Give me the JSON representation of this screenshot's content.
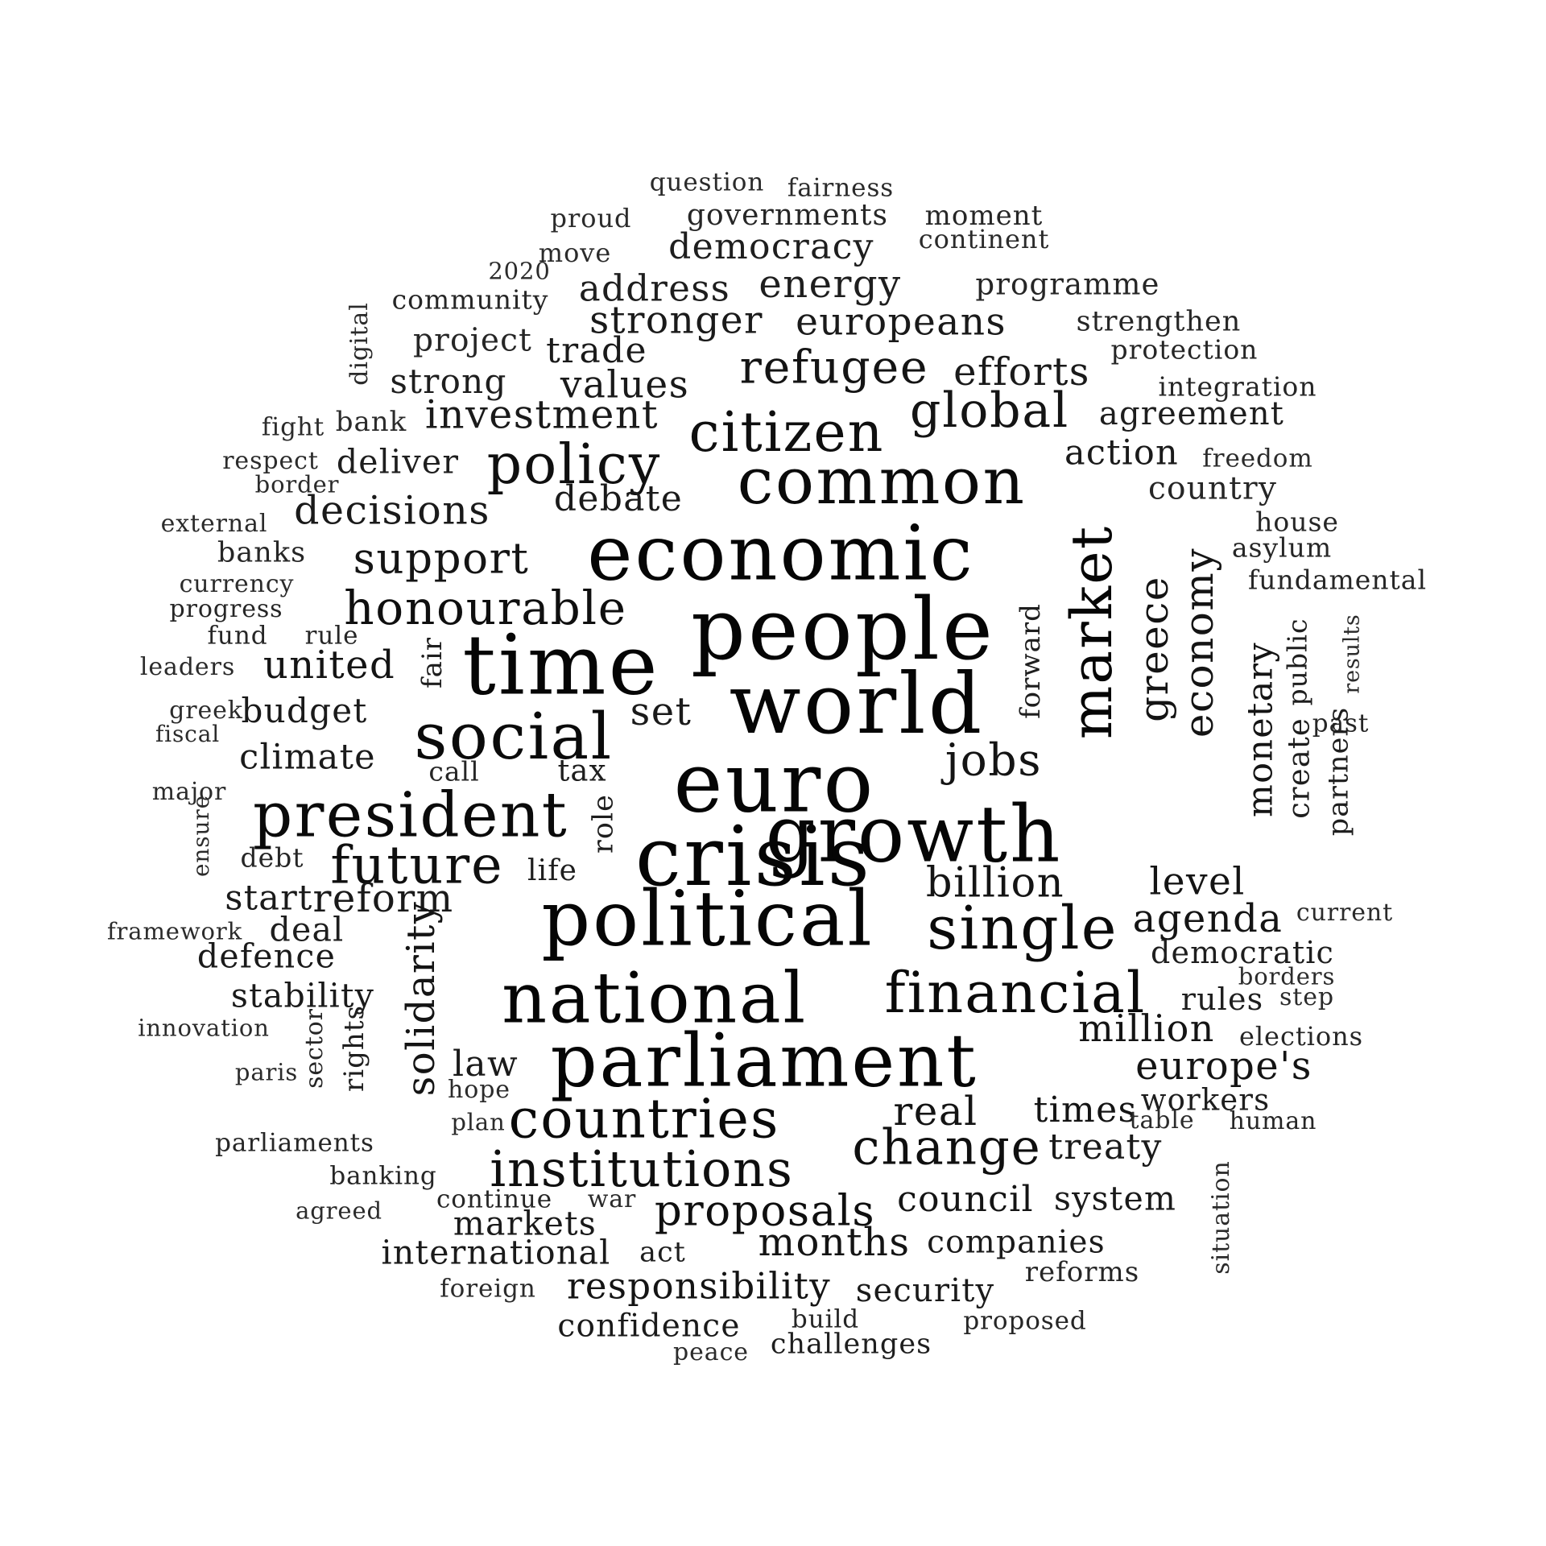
{
  "words": [
    {
      "text": "question",
      "color": "#2b2b2b"
    },
    {
      "text": "fairness",
      "color": "#2b2b2b"
    },
    {
      "text": "proud",
      "color": "#2b2b2b"
    },
    {
      "text": "governments",
      "color": "#262626"
    },
    {
      "text": "moment",
      "color": "#262626"
    },
    {
      "text": "move",
      "color": "#2b2b2b"
    },
    {
      "text": "democracy",
      "color": "#1e1e1e"
    },
    {
      "text": "continent",
      "color": "#2b2b2b"
    },
    {
      "text": "2020",
      "color": "#2b2b2b"
    },
    {
      "text": "community",
      "color": "#262626"
    },
    {
      "text": "address",
      "color": "#1e1e1e"
    },
    {
      "text": "energy",
      "color": "#1e1e1e"
    },
    {
      "text": "programme",
      "color": "#262626"
    },
    {
      "text": "digital",
      "color": "#2b2b2b"
    },
    {
      "text": "project",
      "color": "#262626"
    },
    {
      "text": "stronger",
      "color": "#1a1a1a"
    },
    {
      "text": "europeans",
      "color": "#1a1a1a"
    },
    {
      "text": "strengthen",
      "color": "#262626"
    },
    {
      "text": "trade",
      "color": "#1a1a1a"
    },
    {
      "text": "protection",
      "color": "#262626"
    },
    {
      "text": "strong",
      "color": "#1e1e1e"
    },
    {
      "text": "values",
      "color": "#1a1a1a"
    },
    {
      "text": "refugee",
      "color": "#141414"
    },
    {
      "text": "efforts",
      "color": "#1a1a1a"
    },
    {
      "text": "integration",
      "color": "#262626"
    },
    {
      "text": "fight",
      "color": "#2b2b2b"
    },
    {
      "text": "bank",
      "color": "#2b2b2b"
    },
    {
      "text": "investment",
      "color": "#1a1a1a"
    },
    {
      "text": "global",
      "color": "#141414"
    },
    {
      "text": "agreement",
      "color": "#1e1e1e"
    },
    {
      "text": "citizen",
      "color": "#0f0f0f"
    },
    {
      "text": "respect",
      "color": "#2b2b2b"
    },
    {
      "text": "deliver",
      "color": "#1e1e1e"
    },
    {
      "text": "policy",
      "color": "#0f0f0f"
    },
    {
      "text": "action",
      "color": "#1a1a1a"
    },
    {
      "text": "freedom",
      "color": "#2b2b2b"
    },
    {
      "text": "border",
      "color": "#2b2b2b"
    },
    {
      "text": "common",
      "color": "#0a0a0a"
    },
    {
      "text": "country",
      "color": "#262626"
    },
    {
      "text": "decisions",
      "color": "#1a1a1a"
    },
    {
      "text": "debate",
      "color": "#1a1a1a"
    },
    {
      "text": "external",
      "color": "#2b2b2b"
    },
    {
      "text": "house",
      "color": "#262626"
    },
    {
      "text": "banks",
      "color": "#262626"
    },
    {
      "text": "support",
      "color": "#141414"
    },
    {
      "text": "economic",
      "color": "#050505"
    },
    {
      "text": "market",
      "color": "#050505"
    },
    {
      "text": "asylum",
      "color": "#262626"
    },
    {
      "text": "currency",
      "color": "#2b2b2b"
    },
    {
      "text": "fundamental",
      "color": "#262626"
    },
    {
      "text": "progress",
      "color": "#262626"
    },
    {
      "text": "honourable",
      "color": "#0f0f0f"
    },
    {
      "text": "people",
      "color": "#050505"
    },
    {
      "text": "greece",
      "color": "#141414"
    },
    {
      "text": "economy",
      "color": "#141414"
    },
    {
      "text": "fund",
      "color": "#262626"
    },
    {
      "text": "rule",
      "color": "#262626"
    },
    {
      "text": "forward",
      "color": "#1e1e1e"
    },
    {
      "text": "public",
      "color": "#1e1e1e"
    },
    {
      "text": "results",
      "color": "#2b2b2b"
    },
    {
      "text": "leaders",
      "color": "#2b2b2b"
    },
    {
      "text": "united",
      "color": "#141414"
    },
    {
      "text": "time",
      "color": "#050505"
    },
    {
      "text": "fair",
      "color": "#1e1e1e"
    },
    {
      "text": "monetary",
      "color": "#141414"
    },
    {
      "text": "greek",
      "color": "#2b2b2b"
    },
    {
      "text": "budget",
      "color": "#1a1a1a"
    },
    {
      "text": "set",
      "color": "#1a1a1a"
    },
    {
      "text": "world",
      "color": "#050505"
    },
    {
      "text": "past",
      "color": "#262626"
    },
    {
      "text": "fiscal",
      "color": "#2b2b2b"
    },
    {
      "text": "social",
      "color": "#0a0a0a"
    },
    {
      "text": "create",
      "color": "#1e1e1e"
    },
    {
      "text": "climate",
      "color": "#1a1a1a"
    },
    {
      "text": "jobs",
      "color": "#141414"
    },
    {
      "text": "call",
      "color": "#262626"
    },
    {
      "text": "tax",
      "color": "#1e1e1e"
    },
    {
      "text": "partners",
      "color": "#1e1e1e"
    },
    {
      "text": "major",
      "color": "#2b2b2b"
    },
    {
      "text": "euro",
      "color": "#050505"
    },
    {
      "text": "president",
      "color": "#0a0a0a"
    },
    {
      "text": "role",
      "color": "#1e1e1e"
    },
    {
      "text": "ensure",
      "color": "#2b2b2b"
    },
    {
      "text": "growth",
      "color": "#050505"
    },
    {
      "text": "crisis",
      "color": "#050505"
    },
    {
      "text": "debt",
      "color": "#262626"
    },
    {
      "text": "future",
      "color": "#0f0f0f"
    },
    {
      "text": "life",
      "color": "#1e1e1e"
    },
    {
      "text": "billion",
      "color": "#141414"
    },
    {
      "text": "level",
      "color": "#141414"
    },
    {
      "text": "start",
      "color": "#1a1a1a"
    },
    {
      "text": "reform",
      "color": "#1a1a1a"
    },
    {
      "text": "current",
      "color": "#2b2b2b"
    },
    {
      "text": "framework",
      "color": "#2b2b2b"
    },
    {
      "text": "deal",
      "color": "#1e1e1e"
    },
    {
      "text": "political",
      "color": "#050505"
    },
    {
      "text": "single",
      "color": "#0a0a0a"
    },
    {
      "text": "agenda",
      "color": "#141414"
    },
    {
      "text": "solidarity",
      "color": "#141414"
    },
    {
      "text": "defence",
      "color": "#1a1a1a"
    },
    {
      "text": "democratic",
      "color": "#1e1e1e"
    },
    {
      "text": "borders",
      "color": "#2b2b2b"
    },
    {
      "text": "stability",
      "color": "#1a1a1a"
    },
    {
      "text": "national",
      "color": "#050505"
    },
    {
      "text": "financial",
      "color": "#0a0a0a"
    },
    {
      "text": "rules",
      "color": "#1e1e1e"
    },
    {
      "text": "step",
      "color": "#2b2b2b"
    },
    {
      "text": "innovation",
      "color": "#2b2b2b"
    },
    {
      "text": "million",
      "color": "#141414"
    },
    {
      "text": "elections",
      "color": "#262626"
    },
    {
      "text": "sector",
      "color": "#262626"
    },
    {
      "text": "rights",
      "color": "#1e1e1e"
    },
    {
      "text": "parliament",
      "color": "#050505"
    },
    {
      "text": "law",
      "color": "#1a1a1a"
    },
    {
      "text": "europe's",
      "color": "#141414"
    },
    {
      "text": "paris",
      "color": "#2b2b2b"
    },
    {
      "text": "hope",
      "color": "#2b2b2b"
    },
    {
      "text": "workers",
      "color": "#1e1e1e"
    },
    {
      "text": "countries",
      "color": "#0a0a0a"
    },
    {
      "text": "real",
      "color": "#141414"
    },
    {
      "text": "times",
      "color": "#141414"
    },
    {
      "text": "plan",
      "color": "#2b2b2b"
    },
    {
      "text": "table",
      "color": "#2b2b2b"
    },
    {
      "text": "human",
      "color": "#262626"
    },
    {
      "text": "parliaments",
      "color": "#262626"
    },
    {
      "text": "change",
      "color": "#0f0f0f"
    },
    {
      "text": "treaty",
      "color": "#1a1a1a"
    },
    {
      "text": "institutions",
      "color": "#0f0f0f"
    },
    {
      "text": "situation",
      "color": "#2b2b2b"
    },
    {
      "text": "banking",
      "color": "#262626"
    },
    {
      "text": "agreed",
      "color": "#2b2b2b"
    },
    {
      "text": "continue",
      "color": "#262626"
    },
    {
      "text": "war",
      "color": "#2b2b2b"
    },
    {
      "text": "proposals",
      "color": "#0f0f0f"
    },
    {
      "text": "council",
      "color": "#141414"
    },
    {
      "text": "system",
      "color": "#1a1a1a"
    },
    {
      "text": "markets",
      "color": "#1a1a1a"
    },
    {
      "text": "months",
      "color": "#141414"
    },
    {
      "text": "companies",
      "color": "#1a1a1a"
    },
    {
      "text": "international",
      "color": "#1a1a1a"
    },
    {
      "text": "act",
      "color": "#1e1e1e"
    },
    {
      "text": "reforms",
      "color": "#262626"
    },
    {
      "text": "responsibility",
      "color": "#141414"
    },
    {
      "text": "foreign",
      "color": "#2b2b2b"
    },
    {
      "text": "security",
      "color": "#1a1a1a"
    },
    {
      "text": "build",
      "color": "#262626"
    },
    {
      "text": "proposed",
      "color": "#262626"
    },
    {
      "text": "confidence",
      "color": "#1a1a1a"
    },
    {
      "text": "challenges",
      "color": "#1e1e1e"
    },
    {
      "text": "peace",
      "color": "#2b2b2b"
    }
  ]
}
